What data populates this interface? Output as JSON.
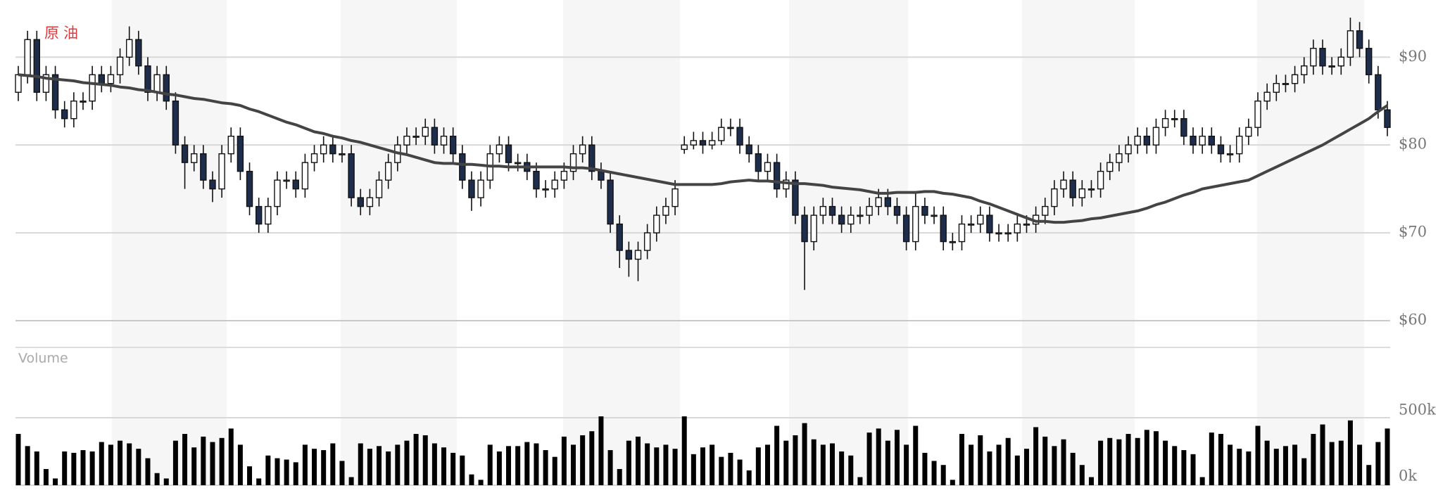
{
  "chart_data": {
    "type": "candlestick",
    "title": "原油",
    "up_color": "#ffffff",
    "down_color": "#1f2d4d",
    "ylim": [
      60,
      95
    ],
    "yticks": [
      {
        "value": 60,
        "label": "$60"
      },
      {
        "value": 70,
        "label": "$70"
      },
      {
        "value": 80,
        "label": "$80"
      },
      {
        "value": 90,
        "label": "$90"
      }
    ],
    "grid": true,
    "open": [
      86,
      88,
      92,
      86,
      88,
      84,
      83,
      85,
      85,
      88,
      87,
      88,
      90,
      92,
      89,
      86,
      88,
      85,
      80,
      78,
      79,
      76,
      75,
      79,
      81,
      77,
      73,
      71,
      73,
      76,
      76,
      75,
      78,
      79,
      80,
      79,
      79,
      74,
      73,
      74,
      76,
      78,
      80,
      81,
      81,
      82,
      80,
      81,
      79,
      76,
      74,
      76,
      79,
      80,
      78,
      78,
      77,
      75,
      75,
      76,
      77,
      79,
      80,
      77,
      76,
      71,
      68,
      67,
      68,
      70,
      72,
      73,
      79.5,
      80,
      80.5,
      80,
      80.5,
      82,
      82,
      80,
      79,
      77,
      78,
      75,
      76,
      72,
      69,
      72,
      73,
      72,
      71,
      72,
      72,
      73,
      74,
      73,
      72,
      69,
      73,
      72,
      72,
      69,
      69,
      71,
      71,
      72,
      70,
      70,
      70,
      71,
      71,
      72,
      73,
      75,
      76,
      74,
      75,
      75,
      77,
      78,
      79,
      80,
      81,
      80,
      82,
      83,
      83,
      81,
      80,
      81,
      80,
      79,
      79,
      81,
      82,
      85,
      86,
      87,
      87,
      88,
      89,
      91,
      89,
      89,
      90,
      93,
      91,
      88,
      84
    ],
    "high": [
      89,
      93,
      93,
      89,
      89,
      85,
      86,
      86,
      89,
      89,
      89,
      91,
      93.5,
      93,
      90,
      89,
      89,
      86,
      81,
      80,
      80,
      77,
      80,
      82,
      82,
      78,
      74,
      74,
      77,
      77,
      77,
      79,
      80,
      81,
      81,
      80,
      80,
      75,
      75,
      77,
      79,
      81,
      82,
      82,
      83,
      83,
      82,
      82,
      80,
      77,
      77,
      80,
      81,
      81,
      79,
      79,
      78,
      76,
      77,
      78,
      80,
      81,
      81,
      78,
      77,
      72,
      69,
      69,
      71,
      73,
      74,
      76,
      81,
      81.5,
      81.5,
      81.5,
      83,
      83,
      83,
      81,
      80,
      79,
      79,
      77,
      77,
      73,
      73,
      74,
      74,
      73,
      73,
      73,
      74,
      75,
      75,
      74,
      73,
      74.5,
      74,
      73,
      73,
      70,
      72,
      72,
      73,
      73,
      71,
      71,
      72,
      72,
      73,
      74,
      76,
      77,
      77,
      76,
      76,
      78,
      79,
      80,
      81,
      82,
      82,
      83,
      84,
      84,
      84,
      82,
      82,
      82,
      81,
      80,
      82,
      83,
      86,
      87,
      88,
      88,
      89,
      90,
      92,
      92,
      90,
      91,
      94.5,
      94,
      92,
      89,
      85
    ],
    "low": [
      85,
      87,
      85,
      85,
      83,
      82,
      82,
      84,
      84,
      86,
      86,
      87,
      89,
      88,
      85,
      85,
      84,
      79,
      75,
      77,
      75,
      73.5,
      74,
      78,
      76,
      72,
      70,
      70,
      72,
      75,
      74,
      74,
      77,
      78,
      78,
      78,
      73,
      72,
      72,
      73,
      75,
      77,
      79,
      80,
      80,
      79,
      79,
      78,
      75,
      72.5,
      73,
      75,
      78,
      77,
      77,
      76,
      74,
      74,
      74,
      75,
      76,
      78,
      76,
      75,
      70,
      66,
      65,
      64.5,
      67,
      69,
      71,
      72,
      79,
      79.5,
      79,
      79.5,
      80,
      81,
      79,
      78,
      76,
      76,
      74,
      74,
      71,
      63.5,
      68,
      71,
      71,
      70,
      70,
      71,
      71,
      72,
      72,
      71,
      68,
      68,
      71,
      71,
      68,
      68,
      68,
      70,
      70,
      69,
      69,
      69,
      69,
      70,
      70,
      71,
      72,
      74,
      73,
      73,
      74,
      74,
      76,
      77,
      78,
      79,
      79,
      79,
      81,
      82,
      80,
      79,
      79,
      79,
      78,
      78,
      78,
      80,
      81,
      84,
      85,
      86,
      86,
      87,
      88,
      88,
      88,
      88,
      89,
      90,
      87,
      83,
      81
    ],
    "close": [
      88,
      92,
      86,
      88,
      84,
      83,
      85,
      85,
      88,
      87,
      88,
      90,
      92,
      89,
      86,
      88,
      85,
      80,
      78,
      79,
      76,
      75,
      79,
      81,
      77,
      73,
      71,
      73,
      76,
      76,
      75,
      78,
      79,
      80,
      79,
      79,
      74,
      73,
      74,
      76,
      78,
      80,
      81,
      81,
      82,
      80,
      81,
      79,
      76,
      74,
      76,
      79,
      80,
      78,
      78,
      77,
      75,
      75,
      76,
      77,
      79,
      80,
      77,
      76,
      71,
      68,
      67,
      68,
      70,
      72,
      73,
      75,
      80,
      80.5,
      80,
      80.5,
      82,
      82,
      80,
      79,
      77,
      78,
      75,
      76,
      72,
      69,
      72,
      73,
      72,
      71,
      72,
      72,
      73,
      74,
      73,
      72,
      69,
      73,
      72,
      72,
      69,
      69,
      71,
      71,
      72,
      70,
      70,
      70,
      71,
      71,
      72,
      73,
      75,
      76,
      74,
      75,
      75,
      77,
      78,
      79,
      80,
      81,
      80,
      82,
      83,
      83,
      81,
      80,
      81,
      80,
      79,
      79,
      81,
      82,
      85,
      86,
      87,
      87,
      88,
      89,
      91,
      89,
      89,
      90,
      93,
      91,
      88,
      84,
      82
    ],
    "moving_average": {
      "color": "#444444",
      "values": [
        88,
        87.9,
        87.8,
        87.6,
        87.5,
        87.4,
        87.3,
        87.1,
        87,
        86.9,
        86.8,
        86.6,
        86.5,
        86.3,
        86.2,
        86,
        85.8,
        85.7,
        85.5,
        85.3,
        85.2,
        85,
        84.8,
        84.7,
        84.5,
        84.1,
        83.8,
        83.4,
        83,
        82.6,
        82.3,
        81.9,
        81.5,
        81.3,
        81,
        80.8,
        80.5,
        80.3,
        80,
        79.7,
        79.4,
        79.1,
        78.9,
        78.6,
        78.3,
        78,
        77.9,
        77.9,
        77.8,
        77.8,
        77.7,
        77.6,
        77.6,
        77.5,
        77.5,
        77.5,
        77.5,
        77.5,
        77.5,
        77.5,
        77.4,
        77.4,
        77.3,
        77.1,
        76.9,
        76.7,
        76.5,
        76.3,
        76.1,
        75.9,
        75.7,
        75.5,
        75.5,
        75.5,
        75.5,
        75.5,
        75.6,
        75.8,
        75.9,
        76,
        75.9,
        75.9,
        75.8,
        75.7,
        75.6,
        75.6,
        75.5,
        75.4,
        75.2,
        75.1,
        75,
        74.9,
        74.7,
        74.5,
        74.5,
        74.6,
        74.6,
        74.6,
        74.7,
        74.7,
        74.5,
        74.4,
        74.2,
        74,
        73.6,
        73.3,
        72.9,
        72.5,
        72.1,
        71.7,
        71.3,
        71.3,
        71.2,
        71.2,
        71.3,
        71.4,
        71.6,
        71.7,
        71.9,
        72.1,
        72.3,
        72.5,
        72.8,
        73.2,
        73.5,
        73.9,
        74.3,
        74.6,
        75,
        75.2,
        75.4,
        75.6,
        75.8,
        76,
        76.5,
        77,
        77.5,
        78,
        78.5,
        79,
        79.5,
        80,
        80.6,
        81.2,
        81.8,
        82.4,
        83,
        83.8,
        84.5
      ]
    },
    "volume": {
      "label": "Volume",
      "color": "#000000",
      "ylim": [
        0,
        1000000
      ],
      "yticks": [
        {
          "value": 0,
          "label": "0k"
        },
        {
          "value": 500000,
          "label": "500k"
        }
      ],
      "values": [
        380000,
        290000,
        250000,
        120000,
        50000,
        250000,
        240000,
        260000,
        250000,
        320000,
        300000,
        330000,
        310000,
        270000,
        200000,
        90000,
        50000,
        330000,
        380000,
        280000,
        360000,
        320000,
        350000,
        420000,
        300000,
        140000,
        50000,
        220000,
        200000,
        190000,
        170000,
        300000,
        270000,
        260000,
        310000,
        180000,
        60000,
        310000,
        270000,
        290000,
        250000,
        300000,
        330000,
        380000,
        370000,
        310000,
        280000,
        240000,
        220000,
        80000,
        40000,
        300000,
        250000,
        290000,
        290000,
        320000,
        310000,
        260000,
        210000,
        360000,
        300000,
        370000,
        400000,
        510000,
        260000,
        120000,
        330000,
        360000,
        310000,
        280000,
        300000,
        270000,
        510000,
        230000,
        280000,
        300000,
        210000,
        240000,
        190000,
        110000,
        280000,
        300000,
        440000,
        330000,
        370000,
        460000,
        340000,
        300000,
        310000,
        250000,
        220000,
        60000,
        390000,
        420000,
        330000,
        410000,
        300000,
        440000,
        240000,
        180000,
        150000,
        40000,
        380000,
        300000,
        370000,
        250000,
        300000,
        350000,
        220000,
        270000,
        430000,
        360000,
        290000,
        340000,
        240000,
        150000,
        60000,
        330000,
        350000,
        340000,
        380000,
        350000,
        410000,
        400000,
        330000,
        290000,
        260000,
        230000,
        60000,
        390000,
        380000,
        300000,
        270000,
        250000,
        440000,
        330000,
        270000,
        290000,
        300000,
        200000,
        380000,
        450000,
        320000,
        330000,
        480000,
        300000,
        150000,
        320000,
        420000
      ]
    }
  }
}
